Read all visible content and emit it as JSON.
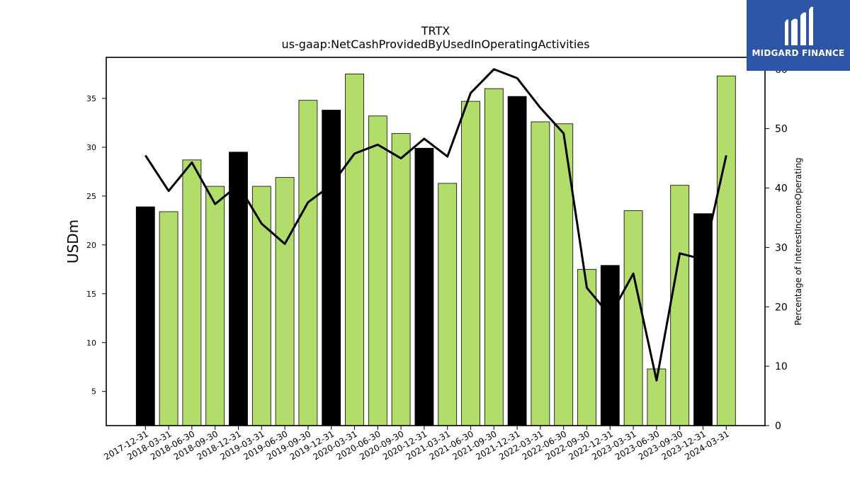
{
  "chart_data": {
    "type": "bar",
    "title": "TRTX",
    "subtitle": "us-gaap:NetCashProvidedByUsedInOperatingActivities",
    "ylabel": "USDm",
    "y2label": "Percentage of InterestIncomeOperating",
    "ylim": [
      1.5,
      39.2
    ],
    "y2lim": [
      0,
      62
    ],
    "yticks": [
      5,
      10,
      15,
      20,
      25,
      30,
      35
    ],
    "y2ticks": [
      0,
      10,
      20,
      30,
      40,
      50,
      60
    ],
    "categories": [
      "2017-12-31",
      "2018-03-31",
      "2018-06-30",
      "2018-09-30",
      "2018-12-31",
      "2019-03-31",
      "2019-06-30",
      "2019-09-30",
      "2019-12-31",
      "2020-03-31",
      "2020-06-30",
      "2020-09-30",
      "2020-12-31",
      "2021-03-31",
      "2021-06-30",
      "2021-09-30",
      "2021-12-31",
      "2022-03-31",
      "2022-06-30",
      "2022-09-30",
      "2022-12-31",
      "2023-03-31",
      "2023-06-30",
      "2023-09-30",
      "2023-12-31",
      "2024-03-31"
    ],
    "series": [
      {
        "type": "bar",
        "values": [
          23.9,
          23.4,
          28.7,
          26.0,
          29.5,
          26.0,
          26.9,
          34.8,
          33.8,
          37.5,
          33.2,
          31.4,
          29.9,
          26.3,
          34.7,
          36.0,
          35.2,
          32.6,
          32.4,
          17.5,
          17.9,
          23.5,
          7.3,
          26.1,
          23.2,
          37.3
        ],
        "highlight": [
          true,
          false,
          false,
          false,
          true,
          false,
          false,
          false,
          true,
          false,
          false,
          false,
          true,
          false,
          false,
          false,
          true,
          false,
          false,
          false,
          true,
          false,
          false,
          false,
          true,
          false
        ]
      },
      {
        "type": "line",
        "axis": "right",
        "values": [
          45.5,
          39.5,
          44.3,
          37.3,
          40.5,
          34.0,
          30.6,
          37.6,
          40.5,
          45.8,
          47.3,
          45.0,
          48.3,
          45.3,
          56.0,
          60.0,
          58.5,
          53.5,
          49.2,
          23.2,
          18.5,
          25.6,
          7.6,
          29.0,
          28.0,
          45.5
        ]
      }
    ],
    "colors": {
      "bar": "#b2dd6a",
      "bar_highlight": "#000000",
      "line": "#000000"
    },
    "grid": false
  },
  "logo": {
    "text": "MIDGARD FINANCE"
  }
}
